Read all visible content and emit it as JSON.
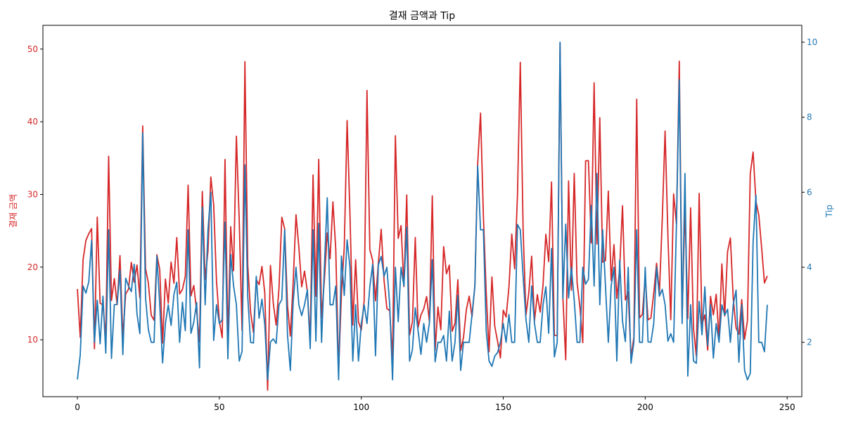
{
  "chart_data": {
    "type": "line",
    "title": "결재 금액과 Tip",
    "xlabel": "",
    "xlim": [
      -12.15,
      255.15
    ],
    "x_ticks": [
      0,
      50,
      100,
      150,
      200,
      250
    ],
    "left_axis": {
      "label": "결재 금액",
      "color": "#d62728",
      "ylim": [
        2.17,
        53.27
      ],
      "ticks": [
        10,
        20,
        30,
        40,
        50
      ]
    },
    "right_axis": {
      "label": "Tip",
      "color": "#1f77b4",
      "ylim": [
        0.55,
        10.45
      ],
      "ticks": [
        2,
        4,
        6,
        8,
        10
      ]
    },
    "grid": false,
    "series": [
      {
        "name": "결재 금액",
        "axis": "left",
        "color": "#d62728",
        "values": [
          16.99,
          10.34,
          21.01,
          23.68,
          24.59,
          25.29,
          8.77,
          26.88,
          15.04,
          14.78,
          10.27,
          35.26,
          15.42,
          18.43,
          14.83,
          21.58,
          10.33,
          16.29,
          16.97,
          20.65,
          17.92,
          20.29,
          15.77,
          39.42,
          19.82,
          17.81,
          13.37,
          12.69,
          21.7,
          19.65,
          9.55,
          18.35,
          15.06,
          20.69,
          17.78,
          24.06,
          16.31,
          16.93,
          18.69,
          31.27,
          16.04,
          17.46,
          13.94,
          9.68,
          30.4,
          18.29,
          22.23,
          32.4,
          28.55,
          18.04,
          12.54,
          10.29,
          34.81,
          9.94,
          25.56,
          19.49,
          38.01,
          26.41,
          11.24,
          48.27,
          20.29,
          13.81,
          11.02,
          18.29,
          17.59,
          20.08,
          16.45,
          3.07,
          20.23,
          15.01,
          12.02,
          17.07,
          26.86,
          25.28,
          14.73,
          10.51,
          17.92,
          27.2,
          22.76,
          17.29,
          19.44,
          16.66,
          10.07,
          32.68,
          15.98,
          34.83,
          13.03,
          18.28,
          24.71,
          21.16,
          28.97,
          22.49,
          5.75,
          16.32,
          22.75,
          40.17,
          27.28,
          12.03,
          21.01,
          12.46,
          11.35,
          15.38,
          44.3,
          22.42,
          20.92,
          15.36,
          20.49,
          25.21,
          18.24,
          14.31,
          14.0,
          7.25,
          38.07,
          23.95,
          25.71,
          17.31,
          29.93,
          10.65,
          12.43,
          24.08,
          11.69,
          13.42,
          14.26,
          15.95,
          12.48,
          29.8,
          8.52,
          14.52,
          11.38,
          22.82,
          19.08,
          20.27,
          11.17,
          12.26,
          18.26,
          8.51,
          10.33,
          14.15,
          16.0,
          13.16,
          17.47,
          34.3,
          41.19,
          27.05,
          16.43,
          8.35,
          18.64,
          11.87,
          9.78,
          7.51,
          14.07,
          13.13,
          17.26,
          24.55,
          19.77,
          29.85,
          48.17,
          25.0,
          13.39,
          16.49,
          21.5,
          12.66,
          16.21,
          13.81,
          17.51,
          24.52,
          20.76,
          31.71,
          10.59,
          10.63,
          50.81,
          15.81,
          7.25,
          31.85,
          16.82,
          32.9,
          17.89,
          14.48,
          9.6,
          34.63,
          34.65,
          23.33,
          45.35,
          23.17,
          40.55,
          20.69,
          20.9,
          30.46,
          18.15,
          23.1,
          15.69,
          19.81,
          28.44,
          15.48,
          16.58,
          7.56,
          10.34,
          43.11,
          13.0,
          13.51,
          18.71,
          12.74,
          13.0,
          16.4,
          20.53,
          16.47,
          26.59,
          38.73,
          24.27,
          12.76,
          30.06,
          25.89,
          48.33,
          13.27,
          28.17,
          12.9,
          28.15,
          11.59,
          7.74,
          30.14,
          12.16,
          13.42,
          8.58,
          15.98,
          13.42,
          16.27,
          10.09,
          20.45,
          13.28,
          22.12,
          24.01,
          15.69,
          11.61,
          10.77,
          15.53,
          10.07,
          12.6,
          32.83,
          35.83,
          29.03,
          27.18,
          22.67,
          17.82,
          18.78
        ]
      },
      {
        "name": "Tip",
        "axis": "right",
        "color": "#1f77b4",
        "values": [
          1.01,
          1.66,
          3.5,
          3.31,
          3.61,
          4.71,
          2.0,
          3.12,
          1.96,
          3.23,
          1.71,
          5.0,
          1.57,
          3.0,
          3.02,
          3.92,
          1.67,
          3.71,
          3.5,
          3.35,
          4.08,
          2.75,
          2.23,
          7.58,
          3.18,
          2.34,
          2.0,
          2.0,
          4.3,
          3.0,
          1.45,
          2.5,
          3.0,
          2.45,
          3.27,
          3.6,
          2.0,
          3.07,
          2.31,
          5.0,
          2.24,
          2.54,
          3.06,
          1.32,
          5.6,
          3.0,
          5.0,
          6.0,
          2.05,
          3.0,
          2.5,
          2.6,
          5.2,
          1.56,
          4.34,
          3.51,
          3.0,
          1.5,
          1.76,
          6.73,
          3.21,
          2.0,
          1.98,
          3.76,
          2.64,
          3.15,
          2.47,
          1.0,
          2.01,
          2.09,
          1.97,
          3.0,
          3.14,
          5.0,
          2.2,
          1.25,
          3.08,
          4.0,
          3.0,
          2.71,
          3.0,
          3.4,
          1.83,
          5.0,
          2.03,
          5.17,
          2.0,
          4.0,
          5.85,
          3.0,
          3.0,
          3.5,
          1.0,
          4.3,
          3.25,
          4.73,
          4.0,
          1.5,
          3.0,
          1.5,
          2.5,
          3.0,
          2.5,
          3.48,
          4.08,
          1.64,
          4.06,
          4.29,
          3.76,
          4.0,
          3.0,
          1.0,
          4.0,
          2.55,
          4.0,
          3.5,
          5.07,
          1.5,
          1.8,
          2.92,
          2.31,
          1.68,
          2.5,
          2.0,
          2.52,
          4.2,
          1.48,
          2.0,
          2.0,
          2.18,
          1.5,
          2.83,
          1.5,
          2.0,
          3.25,
          1.25,
          2.0,
          2.0,
          2.0,
          2.75,
          3.5,
          6.7,
          5.0,
          5.0,
          2.3,
          1.5,
          1.36,
          1.63,
          1.73,
          2.0,
          2.5,
          2.0,
          2.74,
          2.0,
          2.0,
          5.14,
          5.0,
          3.75,
          2.61,
          2.0,
          3.5,
          2.5,
          2.0,
          2.0,
          3.0,
          3.48,
          2.24,
          4.5,
          1.61,
          2.0,
          10.0,
          3.16,
          5.15,
          3.18,
          4.0,
          3.11,
          2.0,
          2.0,
          4.0,
          3.55,
          3.68,
          5.65,
          3.5,
          6.5,
          3.0,
          5.0,
          3.5,
          2.0,
          3.5,
          4.0,
          1.5,
          4.19,
          2.56,
          2.02,
          4.0,
          1.44,
          2.0,
          5.0,
          2.0,
          2.0,
          4.0,
          2.01,
          2.0,
          2.5,
          4.0,
          3.23,
          3.41,
          3.0,
          2.03,
          2.23,
          2.0,
          5.16,
          9.0,
          2.5,
          6.5,
          1.1,
          3.0,
          1.5,
          1.44,
          3.09,
          2.2,
          3.48,
          1.92,
          3.0,
          1.58,
          2.5,
          2.0,
          3.0,
          2.72,
          2.88,
          2.0,
          3.0,
          3.39,
          1.47,
          3.0,
          1.25,
          1.0,
          1.17,
          4.67,
          5.92,
          2.0,
          2.0,
          1.75,
          3.0
        ]
      }
    ]
  }
}
